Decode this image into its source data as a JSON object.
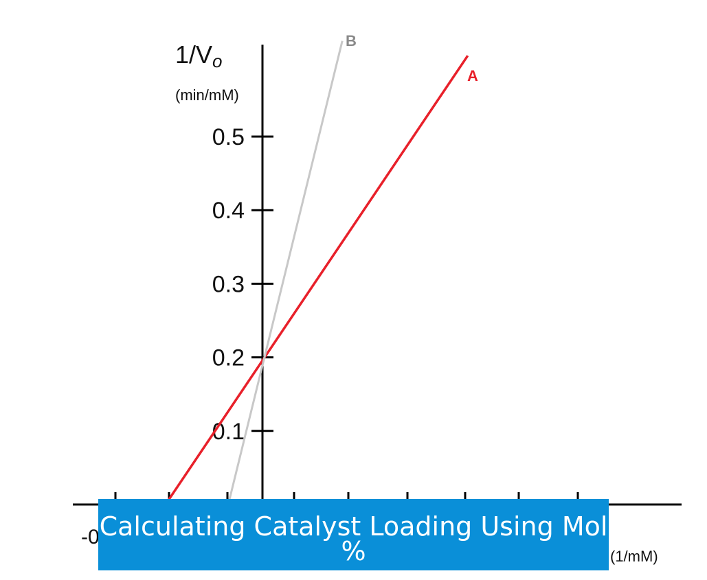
{
  "chart_data": {
    "type": "line",
    "title": "",
    "ylabel": "1/V",
    "ylabel_subscript": "o",
    "ylabel_units": "(min/mM)",
    "xlabel_units": "(1/mM)",
    "x_visible_tick_fragment": "-0",
    "y_ticks": [
      0.1,
      0.2,
      0.3,
      0.4,
      0.5
    ],
    "y_tick_labels": [
      "0.1",
      "0.2",
      "0.3",
      "0.4",
      "0.5"
    ],
    "ylim": [
      0,
      0.6
    ],
    "series": [
      {
        "name": "A",
        "color": "#e8202a",
        "intercept": 0.2,
        "points": [
          [
            -1.7,
            0.0
          ],
          [
            3.6,
            0.61
          ]
        ]
      },
      {
        "name": "B",
        "color": "#c8c8c8",
        "intercept": 0.2,
        "points": [
          [
            -0.6,
            0.0
          ],
          [
            1.4,
            0.63
          ]
        ]
      }
    ],
    "grid": false,
    "legend": "none"
  },
  "banner": {
    "title": "Calculating Catalyst Loading Using Mol %"
  }
}
